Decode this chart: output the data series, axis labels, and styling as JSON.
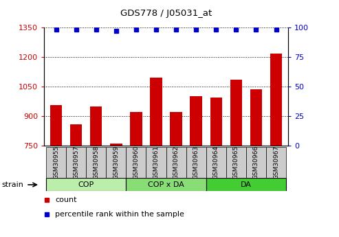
{
  "title": "GDS778 / J05031_at",
  "categories": [
    "GSM30955",
    "GSM30957",
    "GSM30958",
    "GSM30959",
    "GSM30960",
    "GSM30961",
    "GSM30962",
    "GSM30963",
    "GSM30964",
    "GSM30965",
    "GSM30966",
    "GSM30967"
  ],
  "bar_values": [
    955,
    858,
    950,
    760,
    920,
    1095,
    920,
    1000,
    995,
    1085,
    1035,
    1215
  ],
  "percentile_values": [
    98,
    98,
    98,
    97,
    98,
    98,
    98,
    98,
    98,
    98,
    98,
    98
  ],
  "bar_color": "#cc0000",
  "dot_color": "#0000cc",
  "ylim_left": [
    750,
    1350
  ],
  "ylim_right": [
    0,
    100
  ],
  "yticks_left": [
    750,
    900,
    1050,
    1200,
    1350
  ],
  "yticks_right": [
    0,
    25,
    50,
    75,
    100
  ],
  "groups": [
    {
      "label": "COP",
      "start": 0,
      "end": 4,
      "color": "#bbeeaa"
    },
    {
      "label": "COP x DA",
      "start": 4,
      "end": 8,
      "color": "#88dd77"
    },
    {
      "label": "DA",
      "start": 8,
      "end": 12,
      "color": "#44cc33"
    }
  ],
  "xlabel_strain": "strain",
  "legend_count": "count",
  "legend_percentile": "percentile rank within the sample",
  "background_color": "#ffffff",
  "tick_label_color_left": "#cc0000",
  "tick_label_color_right": "#0000cc",
  "grid_color": "#000000",
  "bar_bgcolor": "#ffffff",
  "xticklabel_bgcolor": "#cccccc"
}
